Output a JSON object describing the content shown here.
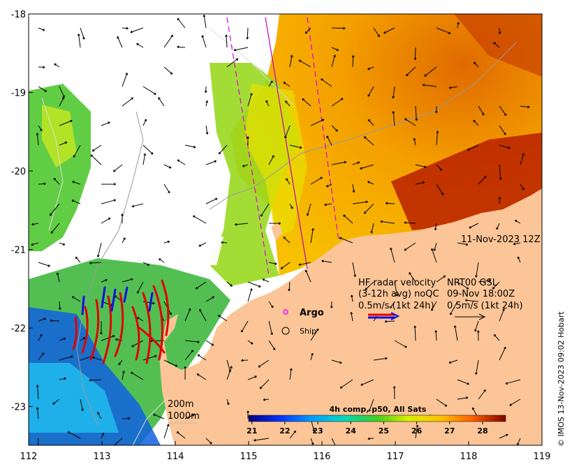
{
  "map": {
    "x_ticks": [
      "112",
      "113",
      "114",
      "115",
      "116",
      "117",
      "118",
      "119"
    ],
    "y_ticks": [
      "-18",
      "-19",
      "-20",
      "-21",
      "-22",
      "-23"
    ],
    "lon_range": [
      112,
      119
    ],
    "lat_range": [
      -23.5,
      -18
    ],
    "timestamp": "11-Nov-2023 12Z",
    "legend": {
      "title_line1": "HF radar velocity",
      "title_line2": "(3-12h avg) noQC",
      "title_line3": "0.5m/s (1kt 24h)",
      "nrt_line1": "NRT00 GSL",
      "nrt_line2": "09-Nov 18:00Z",
      "nrt_line3": "0.5m/s (1kt 24h)",
      "argo_label": "Argo",
      "ship_label": "Ship"
    },
    "depth": {
      "d200": "200m",
      "d1000": "1000m"
    },
    "colorbar": {
      "title": "4h comp, p50, All Sats",
      "ticks": [
        "21",
        "22",
        "23",
        "24",
        "25",
        "26",
        "27",
        "28"
      ],
      "range": [
        20.9,
        28.7
      ]
    },
    "credit": "© IMOS 13-Nov-2023 09:02 Hobart",
    "colors": {
      "land": "#fbc597",
      "radar_red": "#e00000",
      "radar_blue": "#1010e0",
      "argo": "#ff00ff",
      "track": "#cc00cc"
    }
  }
}
